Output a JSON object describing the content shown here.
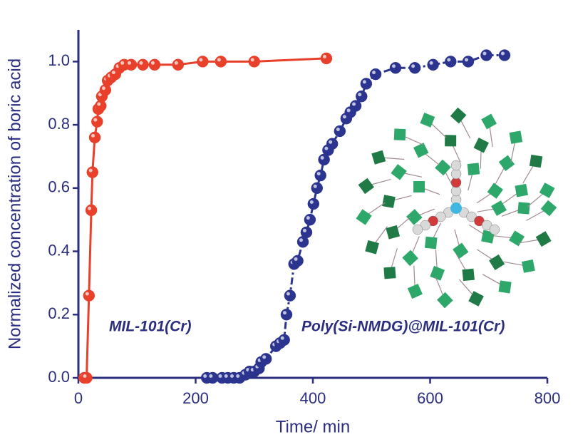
{
  "chart_data": {
    "type": "scatter",
    "x_label": "Time/ min",
    "y_label": "Normalized concentration of boric acid",
    "xlim": [
      0,
      800
    ],
    "xticks": [
      0,
      200,
      400,
      600,
      800
    ],
    "ylim": [
      0,
      1.1
    ],
    "yticks": [
      {
        "value": 0,
        "label": "0.0"
      },
      0.2,
      0.4,
      0.6,
      0.8,
      {
        "value": 1,
        "label": "1.0"
      }
    ],
    "axis_color": "#2b2d7e",
    "series": [
      {
        "name": "MIL-101(Cr)",
        "color": "#e8402a",
        "line": "solid",
        "x": [
          10,
          14,
          18,
          22,
          24,
          28,
          32,
          34,
          38,
          40,
          46,
          50,
          56,
          63,
          70,
          78,
          90,
          110,
          130,
          170,
          212,
          243,
          300,
          423
        ],
        "values": [
          0,
          0,
          0.26,
          0.53,
          0.65,
          0.76,
          0.81,
          0.85,
          0.86,
          0.89,
          0.91,
          0.94,
          0.95,
          0.96,
          0.98,
          0.99,
          0.99,
          0.99,
          0.99,
          0.99,
          1.0,
          1.0,
          1.0,
          1.01
        ]
      },
      {
        "name": "Poly(Si-NMDG)@MIL-101(Cr)",
        "color": "#2b3590",
        "line": "dashdot",
        "x": [
          219,
          229,
          245,
          255,
          265,
          275,
          285,
          292,
          300,
          308,
          312,
          320,
          337,
          344,
          351,
          355,
          361,
          368,
          374,
          383,
          389,
          395,
          401,
          407,
          413,
          419,
          426,
          433,
          446,
          457,
          464,
          473,
          483,
          491,
          507,
          541,
          574,
          605,
          635,
          665,
          696,
          727
        ],
        "values": [
          0,
          0,
          0,
          0,
          0,
          0,
          0.01,
          0.02,
          0.02,
          0.03,
          0.05,
          0.06,
          0.1,
          0.11,
          0.12,
          0.2,
          0.26,
          0.36,
          0.37,
          0.43,
          0.46,
          0.5,
          0.55,
          0.6,
          0.64,
          0.69,
          0.72,
          0.74,
          0.78,
          0.82,
          0.84,
          0.86,
          0.89,
          0.93,
          0.96,
          0.98,
          0.98,
          0.99,
          1.0,
          1.0,
          1.02,
          1.02
        ]
      }
    ],
    "annotations": [
      {
        "text": "MIL-101(Cr)",
        "color": "#e8402a",
        "series": 0
      },
      {
        "text": "Poly(Si-NMDG)@MIL-101(Cr)",
        "color": "#2b3590",
        "series": 1
      }
    ]
  }
}
